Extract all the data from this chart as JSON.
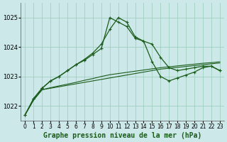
{
  "title": "Graphe pression niveau de la mer (hPa)",
  "bg": "#cce8e8",
  "grid_color": "#99ccbb",
  "line_color": "#1a5c1a",
  "hours": [
    0,
    1,
    2,
    3,
    4,
    5,
    6,
    7,
    8,
    9,
    10,
    11,
    12,
    13,
    14,
    15,
    16,
    17,
    18,
    19,
    20,
    21,
    22,
    23
  ],
  "line_smooth1": [
    1021.7,
    1022.2,
    1022.55,
    1022.6,
    1022.65,
    1022.7,
    1022.75,
    1022.8,
    1022.85,
    1022.9,
    1022.95,
    1023.0,
    1023.05,
    1023.1,
    1023.15,
    1023.2,
    1023.25,
    1023.28,
    1023.31,
    1023.34,
    1023.37,
    1023.4,
    1023.43,
    1023.46
  ],
  "line_smooth2": [
    1021.7,
    1022.2,
    1022.55,
    1022.62,
    1022.68,
    1022.74,
    1022.8,
    1022.87,
    1022.93,
    1023.0,
    1023.06,
    1023.1,
    1023.14,
    1023.18,
    1023.22,
    1023.26,
    1023.3,
    1023.33,
    1023.36,
    1023.39,
    1023.42,
    1023.45,
    1023.47,
    1023.5
  ],
  "line_marked1": [
    1021.7,
    1022.25,
    1022.6,
    1022.85,
    1023.0,
    1023.2,
    1023.4,
    1023.55,
    1023.75,
    1023.95,
    1025.0,
    1024.85,
    1024.7,
    1024.3,
    1024.2,
    1023.5,
    1023.0,
    1022.85,
    1022.95,
    1023.05,
    1023.15,
    1023.3,
    1023.35,
    1023.2
  ],
  "line_marked2": [
    1021.7,
    1022.25,
    1022.6,
    1022.85,
    1023.0,
    1023.2,
    1023.4,
    1023.58,
    1023.8,
    1024.1,
    1024.6,
    1025.0,
    1024.85,
    1024.35,
    1024.2,
    1024.1,
    1023.65,
    1023.3,
    1023.2,
    1023.25,
    1023.3,
    1023.35,
    1023.35,
    1023.2
  ],
  "ylim": [
    1021.5,
    1025.5
  ],
  "yticks": [
    1022,
    1023,
    1024,
    1025
  ],
  "title_fontsize": 7,
  "tick_fontsize": 5.5
}
